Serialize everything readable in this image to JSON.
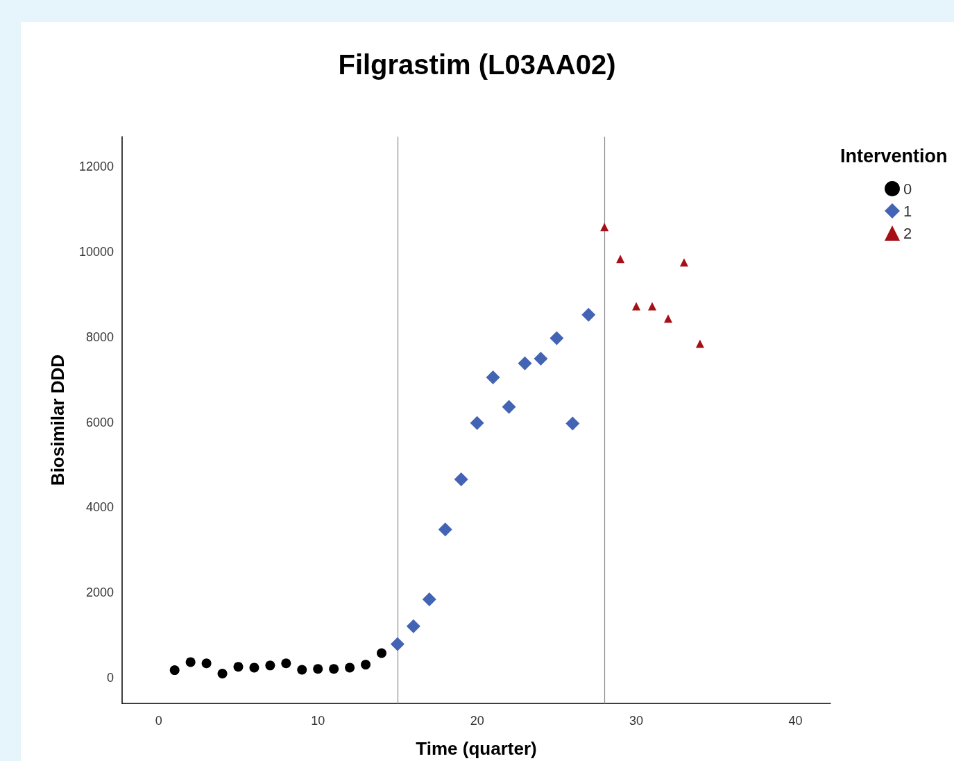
{
  "chart_data": {
    "type": "scatter",
    "title": "Filgrastim (L03AA02)",
    "xlabel": "Time (quarter)",
    "ylabel": "Biosimilar DDD",
    "legend_title": "Intervention",
    "legend": "top right",
    "grid": false,
    "xlim": [
      -2.3,
      42.2
    ],
    "ylim": [
      -600,
      12700
    ],
    "xticks": [
      0,
      10,
      20,
      30,
      40
    ],
    "yticks": [
      0,
      2000,
      4000,
      6000,
      8000,
      10000,
      12000
    ],
    "ref_lines": [
      {
        "axis": "x",
        "value": 15,
        "color": "#8c8c8c"
      },
      {
        "axis": "x",
        "value": 28,
        "color": "#8c8c8c"
      }
    ],
    "series": [
      {
        "name": "0",
        "color": "#000000",
        "marker": "circle",
        "x": [
          1,
          2,
          3,
          4,
          5,
          6,
          7,
          8,
          9,
          10,
          11,
          12,
          13,
          14
        ],
        "values": [
          180,
          370,
          340,
          100,
          260,
          240,
          290,
          340,
          190,
          210,
          210,
          240,
          310,
          580
        ]
      },
      {
        "name": "1",
        "color": "#4363b5",
        "marker": "diamond",
        "x": [
          15,
          16,
          17,
          18,
          19,
          20,
          21,
          22,
          23,
          24,
          25,
          26,
          27
        ],
        "values": [
          790,
          1210,
          1840,
          3480,
          4660,
          5980,
          7050,
          6360,
          7380,
          7490,
          7970,
          5970,
          8520
        ]
      },
      {
        "name": "2",
        "color": "#a50f15",
        "marker": "triangle",
        "x": [
          28,
          29,
          30,
          31,
          32,
          33,
          34
        ],
        "values": [
          10580,
          9830,
          8720,
          8720,
          8430,
          9750,
          7840
        ]
      }
    ]
  }
}
